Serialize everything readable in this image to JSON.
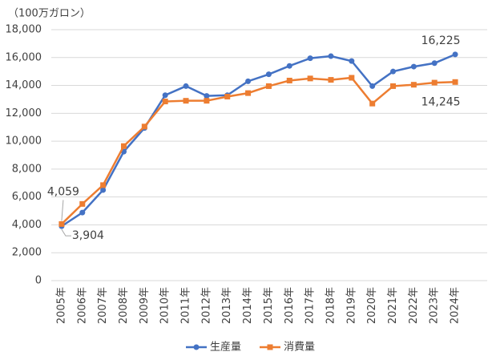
{
  "chart_data": {
    "type": "line",
    "y_label": "（100万ガロン）",
    "categories": [
      "2005年",
      "2006年",
      "2007年",
      "2008年",
      "2009年",
      "2010年",
      "2011年",
      "2012年",
      "2013年",
      "2014年",
      "2015年",
      "2016年",
      "2017年",
      "2018年",
      "2019年",
      "2020年",
      "2021年",
      "2022年",
      "2023年",
      "2024年"
    ],
    "series": [
      {
        "name": "生産量",
        "color": "#4472c4",
        "values": [
          3904,
          4880,
          6500,
          9250,
          10950,
          13300,
          13950,
          13250,
          13300,
          14300,
          14800,
          15400,
          15950,
          16100,
          15750,
          13950,
          15000,
          15350,
          15600,
          16225
        ],
        "value_labels": [
          "3,904",
          null,
          null,
          null,
          null,
          null,
          null,
          null,
          null,
          null,
          null,
          null,
          null,
          null,
          null,
          null,
          null,
          null,
          null,
          "16,225"
        ]
      },
      {
        "name": "消費量",
        "color": "#ed7d31",
        "values": [
          4059,
          5500,
          6850,
          9650,
          11050,
          12850,
          12900,
          12900,
          13200,
          13450,
          13950,
          14350,
          14500,
          14400,
          14550,
          12700,
          13950,
          14050,
          14200,
          14245
        ],
        "value_labels": [
          "4,059",
          null,
          null,
          null,
          null,
          null,
          null,
          null,
          null,
          null,
          null,
          null,
          null,
          null,
          null,
          null,
          null,
          null,
          null,
          "14,245"
        ]
      }
    ],
    "ylim": [
      0,
      18000
    ],
    "yticks": [
      0,
      {
        "value": 2000,
        "label": "2,000"
      },
      {
        "value": 4000,
        "label": "4,000"
      },
      {
        "value": 6000,
        "label": "6,000"
      },
      {
        "value": 8000,
        "label": "8,000"
      },
      {
        "value": 10000,
        "label": "10,000"
      },
      {
        "value": 12000,
        "label": "12,000"
      },
      {
        "value": 14000,
        "label": "14,000"
      },
      {
        "value": 16000,
        "label": "16,000"
      },
      {
        "value": 18000,
        "label": "18,000"
      }
    ],
    "grid": true,
    "legend": "bottom"
  }
}
